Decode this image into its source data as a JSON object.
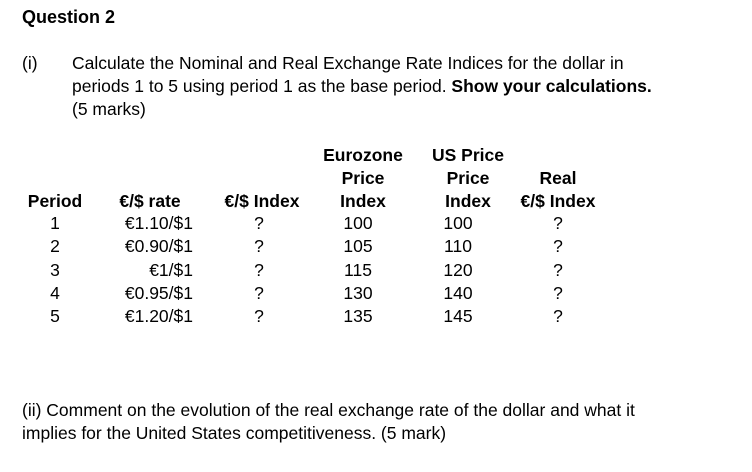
{
  "question": {
    "title": "Question 2",
    "part_i": {
      "label": "(i)",
      "lines": [
        "Calculate the Nominal and Real Exchange Rate Indices for the dollar in",
        "periods 1 to 5 using period 1 as the base period. ",
        "(5 marks)"
      ],
      "bold": "Show your calculations."
    },
    "table": {
      "headers": [
        [
          "Period"
        ],
        [
          "€/$ rate"
        ],
        [
          "€/$ Index"
        ],
        [
          "Eurozone",
          "Price",
          "Index"
        ],
        [
          "US Price",
          "Price",
          "Index"
        ],
        [
          "Real",
          "€/$ Index"
        ]
      ],
      "rows": [
        [
          1,
          "€1.10/$1",
          "?",
          100,
          100,
          "?"
        ],
        [
          2,
          "€0.90/$1",
          "?",
          105,
          110,
          "?"
        ],
        [
          3,
          "€1/$1",
          "?",
          115,
          120,
          "?"
        ],
        [
          4,
          "€0.95/$1",
          "?",
          130,
          140,
          "?"
        ],
        [
          5,
          "€1.20/$1",
          "?",
          135,
          145,
          "?"
        ]
      ]
    },
    "part_ii": {
      "lines": [
        "(ii) Comment on the evolution of the real exchange rate of the dollar and what it",
        "implies for the United States competitiveness. (5 mark)"
      ]
    }
  }
}
